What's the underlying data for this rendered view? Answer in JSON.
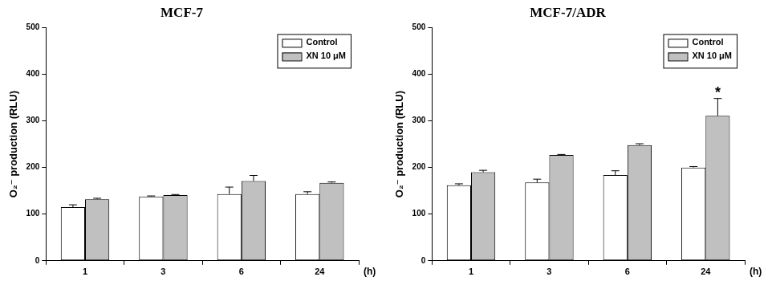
{
  "chart_data": [
    {
      "type": "bar",
      "title": "MCF-7",
      "categories": [
        "1",
        "3",
        "6",
        "24"
      ],
      "series": [
        {
          "name": "Control",
          "color": "#ffffff",
          "values": [
            115,
            138,
            143,
            143
          ],
          "errors": [
            5,
            1,
            15,
            5
          ]
        },
        {
          "name": "XN 10 μM",
          "color": "#c0c0c0",
          "values": [
            132,
            141,
            171,
            167
          ],
          "errors": [
            2,
            1,
            12,
            2
          ]
        }
      ],
      "y_label": "O₂⁻ production (RLU)",
      "x_label": "(h)",
      "ylim": [
        0,
        500
      ],
      "yticks": [
        0,
        100,
        200,
        300,
        400,
        500
      ],
      "grid": false,
      "legend": "upper right"
    },
    {
      "type": "bar",
      "title": "MCF-7/ADR",
      "categories": [
        "1",
        "3",
        "6",
        "24"
      ],
      "series": [
        {
          "name": "Control",
          "color": "#ffffff",
          "values": [
            162,
            168,
            184,
            200
          ],
          "errors": [
            3,
            7,
            9,
            2
          ]
        },
        {
          "name": "XN 10 μM",
          "color": "#c0c0c0",
          "values": [
            190,
            227,
            248,
            311
          ],
          "errors": [
            4,
            1,
            3,
            37
          ]
        }
      ],
      "y_label": "O₂⁻ production (RLU)",
      "x_label": "(h)",
      "ylim": [
        0,
        500
      ],
      "yticks": [
        0,
        100,
        200,
        300,
        400,
        500
      ],
      "grid": false,
      "legend": "upper right",
      "annotations": [
        {
          "text": "*",
          "category": "24",
          "series": "XN 10 μM"
        }
      ]
    }
  ]
}
